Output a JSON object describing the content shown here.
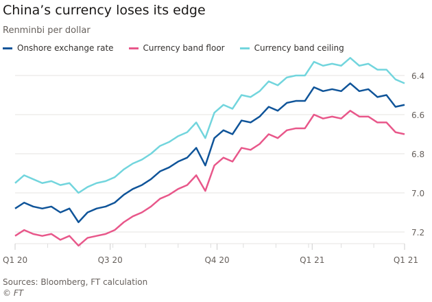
{
  "chart_data": {
    "type": "line",
    "title": "China’s currency loses its edge",
    "subtitle": "Renminbi per dollar",
    "ylim": [
      7.28,
      6.32
    ],
    "y_inverted": true,
    "yticks": [
      6.4,
      6.6,
      6.8,
      7.0,
      7.2
    ],
    "ytick_labels": [
      "6.4",
      "6.6",
      "6.8",
      "7.0",
      "7.2"
    ],
    "xticks": [
      {
        "label": "Q1 20",
        "at": 0
      },
      {
        "label": "Q3 20",
        "at": 10.5
      },
      {
        "label": "Q4 20",
        "at": 22.3
      },
      {
        "label": "Q1 21",
        "at": 32.8
      },
      {
        "label": "Q1 21",
        "at": 43
      }
    ],
    "grid": true,
    "legend": "top",
    "series": [
      {
        "name": "Onshore exchange rate",
        "color": "#0f5499",
        "values": [
          7.08,
          7.05,
          7.07,
          7.08,
          7.07,
          7.1,
          7.08,
          7.15,
          7.1,
          7.08,
          7.07,
          7.05,
          7.01,
          6.98,
          6.96,
          6.93,
          6.89,
          6.87,
          6.84,
          6.82,
          6.77,
          6.86,
          6.72,
          6.68,
          6.7,
          6.63,
          6.64,
          6.61,
          6.56,
          6.58,
          6.54,
          6.53,
          6.53,
          6.46,
          6.48,
          6.47,
          6.48,
          6.44,
          6.48,
          6.47,
          6.51,
          6.5,
          6.56,
          6.55
        ]
      },
      {
        "name": "Currency band floor",
        "color": "#e8578a",
        "values": [
          7.22,
          7.19,
          7.21,
          7.22,
          7.21,
          7.24,
          7.22,
          7.27,
          7.23,
          7.22,
          7.21,
          7.19,
          7.15,
          7.12,
          7.1,
          7.07,
          7.03,
          7.01,
          6.98,
          6.96,
          6.91,
          6.99,
          6.86,
          6.82,
          6.84,
          6.77,
          6.78,
          6.75,
          6.7,
          6.72,
          6.68,
          6.67,
          6.67,
          6.6,
          6.62,
          6.61,
          6.62,
          6.58,
          6.61,
          6.61,
          6.64,
          6.64,
          6.69,
          6.7
        ]
      },
      {
        "name": "Currency band ceiling",
        "color": "#72d5dd",
        "values": [
          6.95,
          6.91,
          6.93,
          6.95,
          6.94,
          6.96,
          6.95,
          7.0,
          6.97,
          6.95,
          6.94,
          6.92,
          6.88,
          6.85,
          6.83,
          6.8,
          6.76,
          6.74,
          6.71,
          6.69,
          6.64,
          6.72,
          6.59,
          6.55,
          6.57,
          6.5,
          6.51,
          6.48,
          6.43,
          6.45,
          6.41,
          6.4,
          6.4,
          6.33,
          6.35,
          6.34,
          6.35,
          6.31,
          6.35,
          6.34,
          6.37,
          6.37,
          6.42,
          6.44
        ]
      }
    ]
  },
  "source": "Sources: Bloomberg, FT calculation",
  "copyright": "© FT"
}
